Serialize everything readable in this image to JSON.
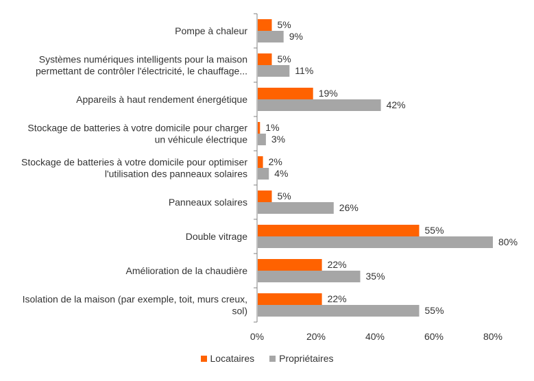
{
  "chart_data": {
    "type": "bar",
    "orientation": "horizontal",
    "categories": [
      [
        "Pompe à chaleur"
      ],
      [
        "Systèmes numériques intelligents pour la maison",
        "permettant de contrôler l'électricité, le chauffage..."
      ],
      [
        "Appareils à haut rendement énergétique"
      ],
      [
        "Stockage de batteries à votre domicile pour charger",
        "un véhicule électrique"
      ],
      [
        "Stockage de batteries à votre domicile pour optimiser",
        "l'utilisation des panneaux solaires"
      ],
      [
        "Panneaux solaires"
      ],
      [
        "Double vitrage"
      ],
      [
        "Amélioration de la chaudière"
      ],
      [
        "Isolation de la maison (par exemple, toit, murs creux,",
        "sol)"
      ]
    ],
    "series": [
      {
        "name": "Locataires",
        "color": "#ff6200",
        "values": [
          5,
          5,
          19,
          1,
          2,
          5,
          55,
          22,
          22
        ],
        "labels": [
          "5%",
          "5%",
          "19%",
          "1%",
          "2%",
          "5%",
          "55%",
          "22%",
          "22%"
        ]
      },
      {
        "name": "Propriétaires",
        "color": "#a6a6a6",
        "values": [
          9,
          11,
          42,
          3,
          4,
          26,
          80,
          35,
          55
        ],
        "labels": [
          "9%",
          "11%",
          "42%",
          "3%",
          "4%",
          "26%",
          "80%",
          "35%",
          "55%"
        ]
      }
    ],
    "xlim": [
      0,
      80
    ],
    "xticks": [
      "0%",
      "20%",
      "40%",
      "60%",
      "80%"
    ],
    "xtick_values": [
      0,
      20,
      40,
      60,
      80
    ],
    "grid": false,
    "legend_position": "bottom"
  }
}
